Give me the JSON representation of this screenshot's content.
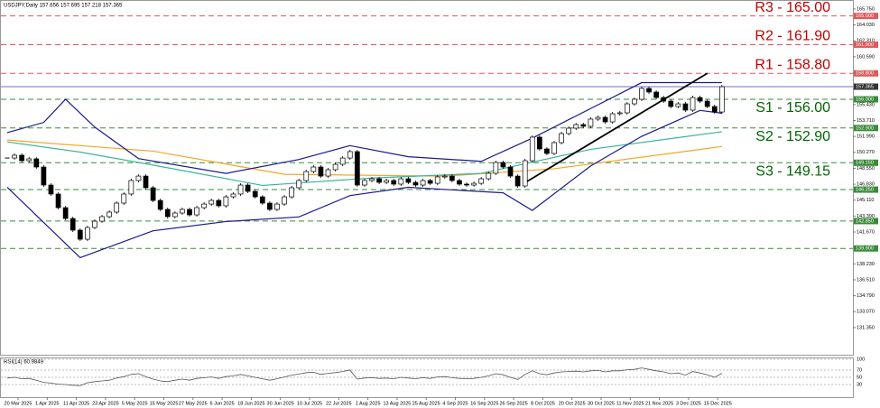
{
  "chart_data": {
    "type": "candlestick",
    "title": "USDJPY,Daily 157.656 157.695 157.218 157.365",
    "ylim": [
      128.42,
      166.72
    ],
    "yticks": [
      {
        "value": 165.75,
        "label": "165.750"
      },
      {
        "value": 164.03,
        "label": "164.030"
      },
      {
        "value": 162.31,
        "label": "162.310"
      },
      {
        "value": 160.59,
        "label": "160.590"
      },
      {
        "value": 158.87,
        "label": "158.870"
      },
      {
        "value": 157.15,
        "label": "157.150"
      },
      {
        "value": 155.43,
        "label": "155.430"
      },
      {
        "value": 153.71,
        "label": "153.710"
      },
      {
        "value": 151.99,
        "label": "151.990"
      },
      {
        "value": 150.27,
        "label": "150.270"
      },
      {
        "value": 148.55,
        "label": "148.550"
      },
      {
        "value": 146.83,
        "label": "146.830"
      },
      {
        "value": 145.11,
        "label": "145.110"
      },
      {
        "value": 143.39,
        "label": "143.390"
      },
      {
        "value": 141.67,
        "label": "141.670"
      },
      {
        "value": 139.95,
        "label": "139.950"
      },
      {
        "value": 138.23,
        "label": "138.230"
      },
      {
        "value": 136.51,
        "label": "136.510"
      },
      {
        "value": 134.79,
        "label": "134.790"
      },
      {
        "value": 133.07,
        "label": "133.070"
      },
      {
        "value": 131.35,
        "label": "131.350"
      }
    ],
    "x_labels": [
      "20 Mar 2025",
      "1 Apr 2025",
      "11 Apr 2025",
      "23 Apr 2025",
      "5 May 2025",
      "15 May 2025",
      "27 May 2025",
      "6 Jun 2025",
      "18 Jun 2025",
      "30 Jun 2025",
      "10 Jul 2025",
      "22 Jul 2025",
      "1 Aug 2025",
      "13 Aug 2025",
      "25 Aug 2025",
      "4 Sep 2025",
      "16 Sep 2025",
      "26 Sep 2025",
      "8 Oct 2025",
      "20 Oct 2025",
      "30 Oct 2025",
      "11 Nov 2025",
      "21 Nov 2025",
      "3 Dec 2025",
      "15 Dec 2025"
    ],
    "closes": [
      149.66,
      149.96,
      149.37,
      149.57,
      148.69,
      146.74,
      145.77,
      144.3,
      143.13,
      141.87,
      140.89,
      142.16,
      142.84,
      143.33,
      143.82,
      144.79,
      145.77,
      147.23,
      147.71,
      146.45,
      145.08,
      144.11,
      143.33,
      143.72,
      144.11,
      143.52,
      144.3,
      144.69,
      145.08,
      144.5,
      145.47,
      145.77,
      146.74,
      146.06,
      145.47,
      144.79,
      144.11,
      144.69,
      145.47,
      146.45,
      147.23,
      148.2,
      148.69,
      147.71,
      148.4,
      148.98,
      149.66,
      150.35,
      146.74,
      147.23,
      147.42,
      147.03,
      147.23,
      146.84,
      147.42,
      147.03,
      146.74,
      147.23,
      146.93,
      147.62,
      147.71,
      147.23,
      146.84,
      146.74,
      146.93,
      147.42,
      148.01,
      149.18,
      148.69,
      147.71,
      146.64,
      149.37,
      151.91,
      150.64,
      150.15,
      151.32,
      152.3,
      152.88,
      153.27,
      153.08,
      153.86,
      154.05,
      153.56,
      154.44,
      154.54,
      155.51,
      156.0,
      157.17,
      156.78,
      156.19,
      155.8,
      155.22,
      155.51,
      154.83,
      156.19,
      155.8,
      155.22,
      154.63,
      157.36
    ],
    "up_color": "#ffffff",
    "down_color": "#000000",
    "lines": [
      {
        "color": "#f5a623",
        "x": [
          0,
          20,
          38,
          60,
          75,
          98
        ],
        "values": [
          151.6,
          150.4,
          147.9,
          147.7,
          148.5,
          150.9
        ]
      },
      {
        "color": "#3cb39b",
        "x": [
          0,
          10,
          20,
          35,
          50,
          65,
          80,
          98
        ],
        "values": [
          151.4,
          150.3,
          148.9,
          146.7,
          147.5,
          148.0,
          150.6,
          152.5
        ]
      },
      {
        "color": "#1a1a8c",
        "x": [
          0,
          5,
          8,
          12,
          18,
          30,
          40,
          47,
          55,
          65,
          72,
          80,
          87,
          98
        ],
        "values": [
          152.4,
          153.5,
          156.0,
          153.0,
          149.6,
          148.0,
          149.5,
          151.0,
          149.8,
          149.3,
          151.8,
          155.0,
          157.8,
          157.8
        ]
      },
      {
        "color": "#1a1a8c",
        "x": [
          0,
          10,
          20,
          30,
          40,
          47,
          55,
          68,
          72,
          80,
          87,
          95,
          98
        ],
        "values": [
          146.5,
          138.9,
          141.8,
          142.8,
          143.3,
          145.6,
          146.5,
          145.9,
          144.0,
          148.8,
          152.0,
          154.8,
          154.5
        ]
      },
      {
        "color": "#000000",
        "x": [
          71,
          96
        ],
        "values": [
          147.0,
          158.8
        ]
      }
    ],
    "current": {
      "value": 157.365,
      "axis_label": "157.365",
      "color": "#6f6fd0"
    },
    "levels": [
      {
        "value": 165.0,
        "axis_label": "165.000",
        "label": "R3 - 165.00",
        "color": "#e0585b",
        "text_color": "#c00000",
        "side": "above"
      },
      {
        "value": 161.9,
        "axis_label": "161.900",
        "label": "R2 - 161.90",
        "color": "#e0585b",
        "text_color": "#c00000",
        "side": "above"
      },
      {
        "value": 158.8,
        "axis_label": "158.800",
        "label": "R1 - 158.80",
        "color": "#e0585b",
        "text_color": "#c00000",
        "side": "above"
      },
      {
        "value": 156.0,
        "axis_label": "156.000",
        "label": "S1 - 156.00",
        "color": "#3a8a3a",
        "text_color": "#006400",
        "side": "below"
      },
      {
        "value": 152.9,
        "axis_label": "152.900",
        "label": "S2 - 152.90",
        "color": "#3a8a3a",
        "text_color": "#006400",
        "side": "below"
      },
      {
        "value": 149.15,
        "axis_label": "149.150",
        "label": "S3 - 149.15",
        "color": "#3a8a3a",
        "text_color": "#006400",
        "side": "below"
      },
      {
        "value": 146.25,
        "axis_label": "146.250",
        "color": "#3a8a3a"
      },
      {
        "value": 142.85,
        "axis_label": "142.850",
        "color": "#3a8a3a"
      },
      {
        "value": 139.9,
        "axis_label": "139.900",
        "color": "#3a8a3a"
      }
    ],
    "rsi": {
      "title": "RSI(14) 60.9849",
      "color": "#555555",
      "ylim": [
        0,
        100
      ],
      "yticks": [
        100,
        70,
        50,
        30
      ],
      "values": [
        48,
        50,
        46,
        47,
        42,
        36,
        34,
        31,
        30,
        28,
        27,
        35,
        38,
        40,
        42,
        48,
        52,
        58,
        60,
        52,
        45,
        40,
        38,
        42,
        45,
        42,
        47,
        49,
        51,
        47,
        52,
        54,
        58,
        54,
        50,
        46,
        42,
        46,
        51,
        56,
        59,
        63,
        64,
        58,
        61,
        63,
        66,
        70,
        45,
        48,
        49,
        47,
        48,
        46,
        50,
        48,
        46,
        49,
        47,
        51,
        52,
        49,
        47,
        46,
        47,
        50,
        54,
        60,
        57,
        50,
        44,
        58,
        68,
        60,
        57,
        62,
        65,
        66,
        67,
        65,
        68,
        69,
        65,
        68,
        68,
        71,
        72,
        76,
        72,
        68,
        65,
        60,
        62,
        56,
        66,
        62,
        57,
        50,
        61
      ]
    }
  }
}
